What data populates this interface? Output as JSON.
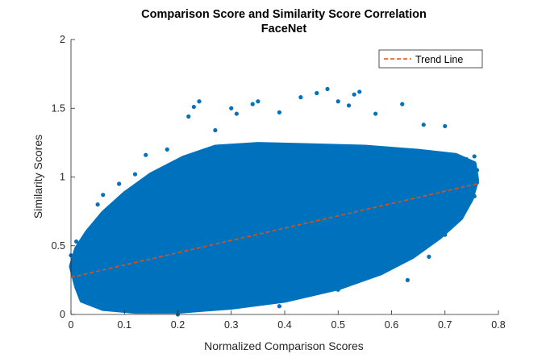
{
  "chart_data": {
    "type": "scatter",
    "title": "Comparison Score and Similarity Score Correlation",
    "subtitle": "FaceNet",
    "xlabel": "Normalized Comparison Scores",
    "ylabel": "Similarity Scores",
    "xlim": [
      0,
      0.8
    ],
    "ylim": [
      0,
      2
    ],
    "xticks": [
      "0",
      "0.1",
      "0.2",
      "0.3",
      "0.4",
      "0.5",
      "0.6",
      "0.7",
      "0.8"
    ],
    "yticks": [
      "0",
      "0.5",
      "1",
      "1.5",
      "2"
    ],
    "grid": false,
    "legend": {
      "position": "top-right",
      "entries": [
        "Trend Line"
      ]
    },
    "colors": {
      "points": "#0072BD",
      "trend": "#D95319"
    },
    "dense_region_outline": [
      [
        0.0,
        0.35
      ],
      [
        0.01,
        0.2
      ],
      [
        0.02,
        0.1
      ],
      [
        0.06,
        0.04
      ],
      [
        0.12,
        0.02
      ],
      [
        0.2,
        0.02
      ],
      [
        0.3,
        0.05
      ],
      [
        0.4,
        0.1
      ],
      [
        0.5,
        0.19
      ],
      [
        0.58,
        0.3
      ],
      [
        0.64,
        0.42
      ],
      [
        0.69,
        0.56
      ],
      [
        0.73,
        0.7
      ],
      [
        0.75,
        0.84
      ],
      [
        0.76,
        0.98
      ],
      [
        0.755,
        1.1
      ],
      [
        0.72,
        1.16
      ],
      [
        0.65,
        1.19
      ],
      [
        0.55,
        1.22
      ],
      [
        0.45,
        1.23
      ],
      [
        0.35,
        1.24
      ],
      [
        0.27,
        1.22
      ],
      [
        0.21,
        1.14
      ],
      [
        0.15,
        1.02
      ],
      [
        0.1,
        0.88
      ],
      [
        0.06,
        0.74
      ],
      [
        0.03,
        0.6
      ],
      [
        0.01,
        0.48
      ]
    ],
    "outlier_points": [
      [
        0.0,
        0.43
      ],
      [
        0.01,
        0.53
      ],
      [
        0.05,
        0.8
      ],
      [
        0.06,
        0.87
      ],
      [
        0.09,
        0.95
      ],
      [
        0.12,
        1.02
      ],
      [
        0.14,
        1.16
      ],
      [
        0.18,
        1.2
      ],
      [
        0.22,
        1.44
      ],
      [
        0.23,
        1.51
      ],
      [
        0.24,
        1.55
      ],
      [
        0.27,
        1.34
      ],
      [
        0.3,
        1.5
      ],
      [
        0.31,
        1.46
      ],
      [
        0.34,
        1.53
      ],
      [
        0.35,
        1.55
      ],
      [
        0.39,
        1.47
      ],
      [
        0.43,
        1.58
      ],
      [
        0.46,
        1.61
      ],
      [
        0.48,
        1.64
      ],
      [
        0.5,
        1.55
      ],
      [
        0.52,
        1.52
      ],
      [
        0.53,
        1.6
      ],
      [
        0.54,
        1.62
      ],
      [
        0.57,
        1.46
      ],
      [
        0.62,
        1.53
      ],
      [
        0.66,
        1.38
      ],
      [
        0.7,
        1.37
      ],
      [
        0.74,
        1.13
      ],
      [
        0.755,
        1.15
      ],
      [
        0.76,
        1.05
      ],
      [
        0.76,
        0.96
      ],
      [
        0.755,
        0.86
      ],
      [
        0.73,
        0.78
      ],
      [
        0.7,
        0.58
      ],
      [
        0.67,
        0.42
      ],
      [
        0.63,
        0.25
      ],
      [
        0.5,
        0.18
      ],
      [
        0.39,
        0.06
      ],
      [
        0.2,
        0.0
      ],
      [
        0.15,
        0.02
      ]
    ],
    "trend_line": {
      "name": "Trend Line",
      "x": [
        0,
        0.76
      ],
      "y": [
        0.27,
        0.95
      ]
    }
  }
}
